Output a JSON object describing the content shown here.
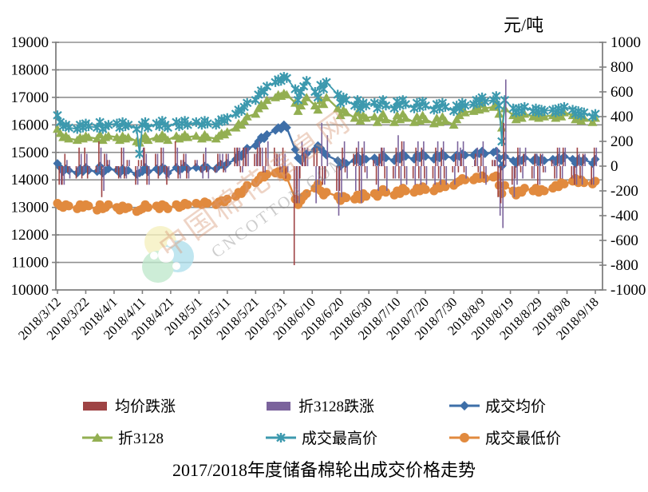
{
  "title": "2017/2018年度储备棉轮出成交价格走势",
  "watermark": {
    "line1": "中国棉花信息网",
    "line2": "CNCOTTON.COM"
  },
  "colors": {
    "background": "#FFFFFF",
    "gridline": "#909090",
    "axis": "#808080",
    "text": "#000000",
    "watermark_text_cn": "#D89A78",
    "watermark_text_en": "#8A8A8A",
    "logo_yellow": "#F6F0BE",
    "logo_blue": "#AFE0EC",
    "logo_green": "#BFE8CC"
  },
  "chart_data": {
    "type": "combo-bar-line",
    "title": "2017/2018年度储备棉轮出成交价格走势",
    "grid": "horizontal",
    "left_axis": {
      "min": 10000,
      "max": 19000,
      "step": 1000,
      "ticks": [
        "19000",
        "18000",
        "17000",
        "16000",
        "15000",
        "14000",
        "13000",
        "12000",
        "11000",
        "10000"
      ]
    },
    "right_axis": {
      "title": "元/吨",
      "min": -1000,
      "max": 1000,
      "step": 200,
      "ticks": [
        "1000",
        "800",
        "600",
        "400",
        "200",
        "0",
        "-200",
        "-400",
        "-600",
        "-800",
        "-1000"
      ]
    },
    "x_tick_labels": [
      "2018/3/12",
      "2018/3/22",
      "2018/4/1",
      "2018/4/11",
      "2018/4/21",
      "2018/5/1",
      "2018/5/11",
      "2018/5/21",
      "2018/5/31",
      "2018/6/10",
      "2018/6/20",
      "2018/6/30",
      "2018/7/10",
      "2018/7/20",
      "2018/7/30",
      "2018/8/9",
      "2018/8/19",
      "2018/8/29",
      "2018/9/8",
      "2018/9/18"
    ],
    "x": [
      "2018/3/12",
      "2018/3/13",
      "2018/3/14",
      "2018/3/15",
      "2018/3/16",
      "2018/3/19",
      "2018/3/20",
      "2018/3/21",
      "2018/3/22",
      "2018/3/23",
      "2018/3/26",
      "2018/3/27",
      "2018/3/28",
      "2018/3/29",
      "2018/3/30",
      "2018/4/2",
      "2018/4/3",
      "2018/4/4",
      "2018/4/5",
      "2018/4/6",
      "2018/4/9",
      "2018/4/10",
      "2018/4/11",
      "2018/4/12",
      "2018/4/13",
      "2018/4/16",
      "2018/4/17",
      "2018/4/18",
      "2018/4/19",
      "2018/4/20",
      "2018/4/23",
      "2018/4/24",
      "2018/4/25",
      "2018/4/26",
      "2018/4/27",
      "2018/4/30",
      "2018/5/2",
      "2018/5/3",
      "2018/5/4",
      "2018/5/7",
      "2018/5/8",
      "2018/5/9",
      "2018/5/10",
      "2018/5/11",
      "2018/5/14",
      "2018/5/15",
      "2018/5/16",
      "2018/5/17",
      "2018/5/18",
      "2018/5/21",
      "2018/5/22",
      "2018/5/23",
      "2018/5/24",
      "2018/5/25",
      "2018/5/28",
      "2018/5/29",
      "2018/5/30",
      "2018/5/31",
      "2018/6/1",
      "2018/6/4",
      "2018/6/5",
      "2018/6/6",
      "2018/6/7",
      "2018/6/8",
      "2018/6/11",
      "2018/6/12",
      "2018/6/13",
      "2018/6/14",
      "2018/6/15",
      "2018/6/19",
      "2018/6/20",
      "2018/6/21",
      "2018/6/22",
      "2018/6/25",
      "2018/6/26",
      "2018/6/27",
      "2018/6/28",
      "2018/6/29",
      "2018/7/2",
      "2018/7/3",
      "2018/7/4",
      "2018/7/5",
      "2018/7/6",
      "2018/7/9",
      "2018/7/10",
      "2018/7/11",
      "2018/7/12",
      "2018/7/13",
      "2018/7/16",
      "2018/7/17",
      "2018/7/18",
      "2018/7/19",
      "2018/7/20",
      "2018/7/23",
      "2018/7/24",
      "2018/7/25",
      "2018/7/26",
      "2018/7/27",
      "2018/7/30",
      "2018/7/31",
      "2018/8/1",
      "2018/8/2",
      "2018/8/3",
      "2018/8/6",
      "2018/8/7",
      "2018/8/8",
      "2018/8/9",
      "2018/8/10",
      "2018/8/13",
      "2018/8/14",
      "2018/8/15",
      "2018/8/16",
      "2018/8/17",
      "2018/8/20",
      "2018/8/21",
      "2018/8/22",
      "2018/8/23",
      "2018/8/24",
      "2018/8/27",
      "2018/8/28",
      "2018/8/29",
      "2018/8/30",
      "2018/8/31",
      "2018/9/3",
      "2018/9/4",
      "2018/9/5",
      "2018/9/6",
      "2018/9/7",
      "2018/9/10",
      "2018/9/11",
      "2018/9/12",
      "2018/9/13",
      "2018/9/14",
      "2018/9/17",
      "2018/9/18"
    ],
    "series": [
      {
        "name": "均价跌涨",
        "type": "bar",
        "axis": "right",
        "color": "#9E4344",
        "values_note": "day-over-day change of 成交均价 (derived at render time)"
      },
      {
        "name": "折3128跌涨",
        "type": "bar",
        "axis": "right",
        "color": "#7B639C",
        "values_note": "day-over-day change of 折3128 (derived at render time)"
      },
      {
        "name": "成交均价",
        "type": "line",
        "marker": "diamond",
        "axis": "left",
        "color": "#3E6FA8",
        "values": [
          14600,
          14450,
          14300,
          14400,
          14350,
          14250,
          14400,
          14300,
          14450,
          14350,
          14300,
          14500,
          14250,
          14350,
          14400,
          14350,
          14250,
          14400,
          14300,
          14350,
          14200,
          14250,
          14300,
          14450,
          14300,
          14400,
          14300,
          14450,
          14400,
          14250,
          14450,
          14350,
          14400,
          14500,
          14400,
          14450,
          14400,
          14500,
          14450,
          14400,
          14500,
          14550,
          14500,
          14600,
          14750,
          14900,
          14850,
          15000,
          15150,
          15250,
          15400,
          15550,
          15500,
          15650,
          15800,
          15900,
          15850,
          16000,
          15900,
          15100,
          14800,
          14700,
          14850,
          14950,
          15100,
          15250,
          15150,
          15000,
          14900,
          14700,
          14500,
          14650,
          14600,
          14700,
          14850,
          14650,
          14800,
          14750,
          14800,
          14650,
          14750,
          14900,
          14800,
          14700,
          14850,
          14750,
          14950,
          14850,
          14750,
          14900,
          14800,
          14950,
          14850,
          14750,
          14900,
          14800,
          14950,
          14850,
          14800,
          14900,
          14850,
          14950,
          14900,
          14900,
          15000,
          14950,
          15050,
          14950,
          15000,
          15050,
          14800,
          14500,
          14850,
          14700,
          14600,
          14750,
          14700,
          14800,
          14700,
          14800,
          14650,
          14750,
          14700,
          14750,
          14650,
          14800,
          14700,
          14850,
          14750,
          14600,
          14750,
          14650,
          14750,
          14600,
          14750
        ]
      },
      {
        "name": "折3128",
        "type": "line",
        "marker": "triangle",
        "axis": "left",
        "color": "#93AF52",
        "values": [
          15850,
          15700,
          15550,
          15600,
          15500,
          15450,
          15550,
          15500,
          15600,
          15550,
          15500,
          15650,
          15450,
          15550,
          15600,
          15550,
          15450,
          15600,
          15500,
          15550,
          15400,
          15350,
          15500,
          15600,
          15450,
          15550,
          15500,
          15650,
          15550,
          15450,
          15600,
          15500,
          15550,
          15650,
          15550,
          15600,
          15500,
          15650,
          15550,
          15500,
          15600,
          15700,
          15650,
          15750,
          15900,
          16050,
          16000,
          16150,
          16300,
          16400,
          16600,
          16750,
          16700,
          16900,
          17000,
          17100,
          17050,
          17150,
          17100,
          16800,
          16500,
          16700,
          16850,
          17000,
          16700,
          16550,
          16900,
          16750,
          17000,
          16600,
          16350,
          16550,
          16450,
          16250,
          16450,
          16150,
          16350,
          16250,
          16300,
          16100,
          16250,
          16400,
          16200,
          16100,
          16350,
          16200,
          16400,
          16250,
          16100,
          16300,
          16150,
          16350,
          16200,
          16050,
          16250,
          16100,
          16300,
          16150,
          16000,
          16200,
          16350,
          16550,
          16450,
          16500,
          16650,
          16550,
          16750,
          16600,
          16650,
          16800,
          16400,
          15900,
          16600,
          16350,
          16200,
          16350,
          16250,
          16400,
          16300,
          16400,
          16250,
          16350,
          16300,
          16350,
          16250,
          16400,
          16300,
          16450,
          16350,
          16200,
          16300,
          16150,
          16250,
          16100,
          16250
        ]
      },
      {
        "name": "成交最高价",
        "type": "line",
        "marker": "asterisk",
        "axis": "left",
        "color": "#3C99AE",
        "values": [
          16350,
          16100,
          15950,
          16000,
          15900,
          15850,
          16000,
          15900,
          16050,
          15950,
          15900,
          16100,
          15850,
          15950,
          16000,
          16050,
          15900,
          16100,
          15950,
          16000,
          15850,
          14950,
          16000,
          16100,
          15900,
          16050,
          15950,
          16150,
          16000,
          15900,
          16100,
          15950,
          16050,
          16150,
          16000,
          16100,
          16000,
          16150,
          16050,
          16000,
          16100,
          16200,
          16150,
          16250,
          16400,
          16550,
          16500,
          16650,
          16800,
          16900,
          17100,
          17250,
          17200,
          17400,
          17550,
          17650,
          17600,
          17750,
          17700,
          17300,
          16900,
          17200,
          17400,
          17600,
          17200,
          17000,
          17450,
          17300,
          17550,
          17100,
          16800,
          17000,
          16900,
          16700,
          16900,
          16600,
          16800,
          16700,
          16800,
          16600,
          16750,
          16900,
          16700,
          16600,
          16850,
          16700,
          16900,
          16750,
          16600,
          16800,
          16650,
          16850,
          16700,
          16550,
          16750,
          16600,
          16800,
          16650,
          16500,
          16700,
          16600,
          16800,
          16700,
          16750,
          16900,
          16800,
          17000,
          16850,
          16900,
          17050,
          16700,
          15400,
          16900,
          16600,
          16450,
          16600,
          16500,
          16650,
          16500,
          16600,
          16450,
          16550,
          16500,
          16550,
          16450,
          16600,
          16500,
          16650,
          16550,
          16400,
          16500,
          16350,
          16450,
          16300,
          16400
        ]
      },
      {
        "name": "成交最低价",
        "type": "line",
        "marker": "circle",
        "axis": "left",
        "color": "#E18A3E",
        "values": [
          13150,
          13050,
          13000,
          13100,
          13050,
          12950,
          13100,
          13000,
          13100,
          13050,
          12900,
          13100,
          12950,
          13000,
          13100,
          13000,
          12900,
          13050,
          12950,
          13000,
          12850,
          12900,
          12950,
          13100,
          13000,
          13050,
          12950,
          13100,
          13050,
          12950,
          13100,
          13000,
          13050,
          13150,
          13100,
          13150,
          13100,
          13200,
          13150,
          13100,
          13200,
          13250,
          13200,
          13300,
          13400,
          13550,
          13500,
          13650,
          13800,
          13900,
          14000,
          14150,
          14100,
          14200,
          14250,
          14300,
          14200,
          14350,
          14100,
          13300,
          13100,
          13250,
          13400,
          13500,
          13700,
          13850,
          13600,
          13450,
          13550,
          13400,
          13250,
          13400,
          13350,
          13300,
          13450,
          13300,
          13500,
          13400,
          13500,
          13400,
          13550,
          13650,
          13550,
          13450,
          13600,
          13500,
          13700,
          13600,
          13550,
          13700,
          13600,
          13750,
          13650,
          13600,
          13750,
          13700,
          13850,
          13750,
          13800,
          13900,
          13950,
          14050,
          14000,
          14000,
          14100,
          14050,
          14150,
          14050,
          14100,
          14150,
          13800,
          13500,
          13800,
          13600,
          13450,
          13600,
          13550,
          13700,
          13600,
          13700,
          13550,
          13650,
          13600,
          13700,
          13800,
          13750,
          13900,
          13850,
          13950,
          14050,
          13900,
          14000,
          13900,
          13850,
          13950
        ]
      }
    ]
  }
}
